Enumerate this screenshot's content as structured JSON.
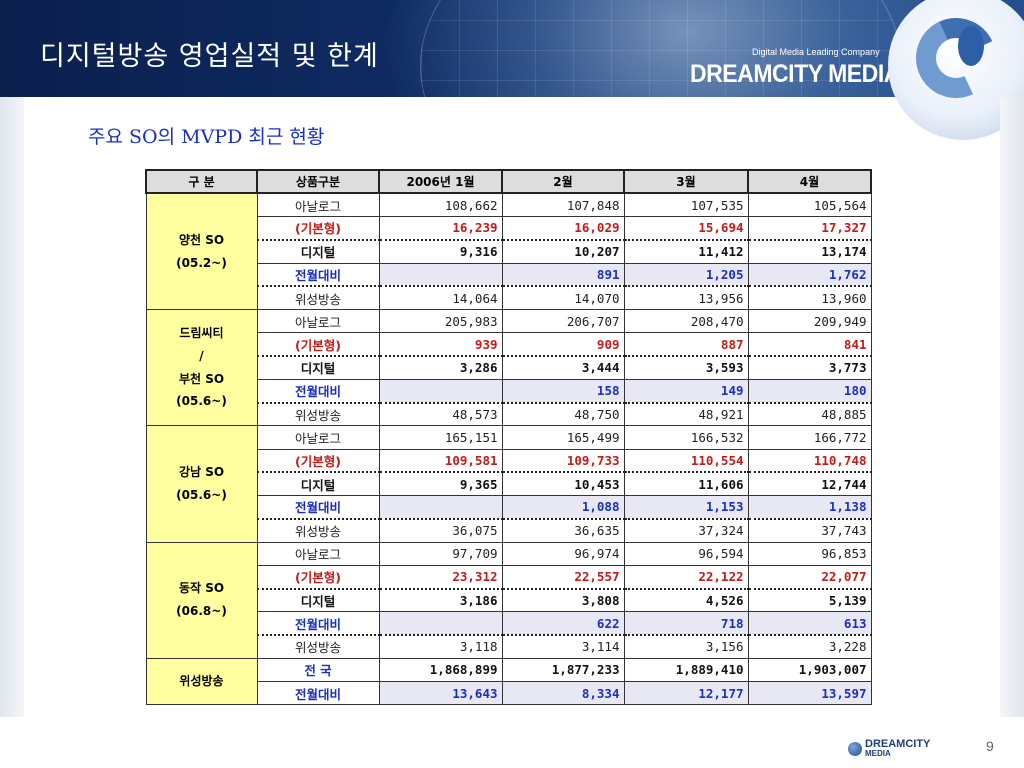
{
  "header": {
    "title": "디지털방송 영업실적 및 한계",
    "tagline": "Digital Media Leading Company",
    "brand": "DREAMCITY MEDIA"
  },
  "subtitle": "주요 SO의 MVPD 최근 현황",
  "table": {
    "headers": [
      "구    분",
      "상품구분",
      "2006년 1월",
      "2월",
      "3월",
      "4월"
    ],
    "groups": [
      {
        "label_lines": [
          "양천 SO",
          "(05.2~)"
        ],
        "rows": [
          {
            "kind": "analog",
            "type": "아날로그",
            "values": [
              "108,662",
              "107,848",
              "107,535",
              "105,564"
            ]
          },
          {
            "kind": "basic",
            "type": "(기본형)",
            "values": [
              "16,239",
              "16,029",
              "15,694",
              "17,327"
            ]
          },
          {
            "kind": "digital",
            "type": "디지털",
            "values": [
              "9,316",
              "10,207",
              "11,412",
              "13,174"
            ]
          },
          {
            "kind": "mom",
            "type": "전월대비",
            "values": [
              "",
              "891",
              "1,205",
              "1,762"
            ]
          },
          {
            "kind": "sat",
            "type": "위성방송",
            "values": [
              "14,064",
              "14,070",
              "13,956",
              "13,960"
            ]
          }
        ]
      },
      {
        "label_lines": [
          "드림씨티",
          "/",
          "부천 SO",
          "(05.6~)"
        ],
        "rows": [
          {
            "kind": "analog",
            "type": "아날로그",
            "values": [
              "205,983",
              "206,707",
              "208,470",
              "209,949"
            ]
          },
          {
            "kind": "basic",
            "type": "(기본형)",
            "values": [
              "939",
              "909",
              "887",
              "841"
            ]
          },
          {
            "kind": "digital",
            "type": "디지털",
            "values": [
              "3,286",
              "3,444",
              "3,593",
              "3,773"
            ]
          },
          {
            "kind": "mom",
            "type": "전월대비",
            "values": [
              "",
              "158",
              "149",
              "180"
            ]
          },
          {
            "kind": "sat",
            "type": "위성방송",
            "values": [
              "48,573",
              "48,750",
              "48,921",
              "48,885"
            ]
          }
        ]
      },
      {
        "label_lines": [
          "강남 SO",
          "(05.6~)"
        ],
        "rows": [
          {
            "kind": "analog",
            "type": "아날로그",
            "values": [
              "165,151",
              "165,499",
              "166,532",
              "166,772"
            ]
          },
          {
            "kind": "basic",
            "type": "(기본형)",
            "values": [
              "109,581",
              "109,733",
              "110,554",
              "110,748"
            ]
          },
          {
            "kind": "digital",
            "type": "디지털",
            "values": [
              "9,365",
              "10,453",
              "11,606",
              "12,744"
            ]
          },
          {
            "kind": "mom",
            "type": "전월대비",
            "values": [
              "",
              "1,088",
              "1,153",
              "1,138"
            ]
          },
          {
            "kind": "sat",
            "type": "위성방송",
            "values": [
              "36,075",
              "36,635",
              "37,324",
              "37,743"
            ]
          }
        ]
      },
      {
        "label_lines": [
          "동작 SO",
          "(06.8~)"
        ],
        "rows": [
          {
            "kind": "analog",
            "type": "아날로그",
            "values": [
              "97,709",
              "96,974",
              "96,594",
              "96,853"
            ]
          },
          {
            "kind": "basic",
            "type": "(기본형)",
            "values": [
              "23,312",
              "22,557",
              "22,122",
              "22,077"
            ]
          },
          {
            "kind": "digital",
            "type": "디지털",
            "values": [
              "3,186",
              "3,808",
              "4,526",
              "5,139"
            ]
          },
          {
            "kind": "mom",
            "type": "전월대비",
            "values": [
              "",
              "622",
              "718",
              "613"
            ]
          },
          {
            "kind": "sat",
            "type": "위성방송",
            "values": [
              "3,118",
              "3,114",
              "3,156",
              "3,228"
            ]
          }
        ]
      },
      {
        "label_lines": [
          "위성방송"
        ],
        "rows": [
          {
            "kind": "satrow",
            "type": "전  국",
            "values": [
              "1,868,899",
              "1,877,233",
              "1,889,410",
              "1,903,007"
            ]
          },
          {
            "kind": "satmom",
            "type": "전월대비",
            "values": [
              "13,643",
              "8,334",
              "12,177",
              "13,597"
            ]
          }
        ]
      }
    ]
  },
  "footer": {
    "logo_line1": "DREAMCITY",
    "logo_line2": "MEDIA",
    "page_number": "9"
  }
}
